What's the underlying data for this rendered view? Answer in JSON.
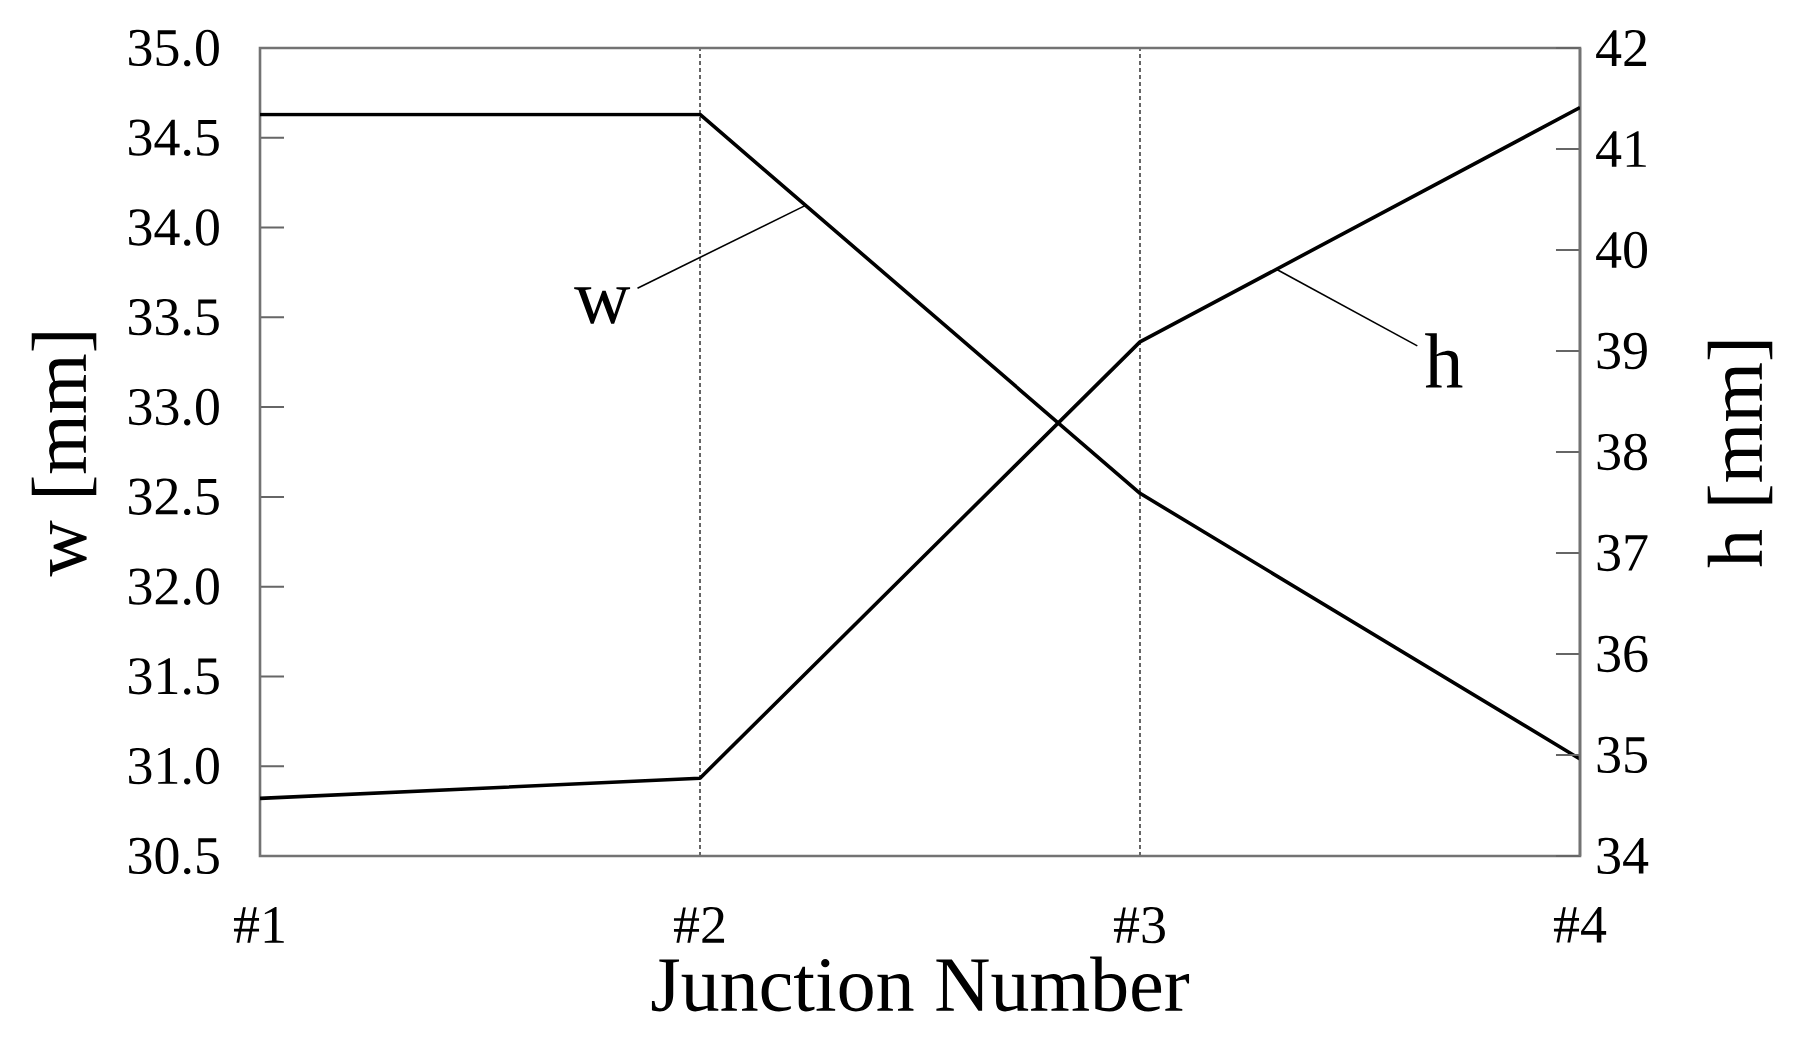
{
  "chart_data": {
    "type": "line",
    "xlabel": "Junction Number",
    "ylabel": "w [mm]",
    "y2label": "h [mm]",
    "categories": [
      "#1",
      "#2",
      "#3",
      "#4"
    ],
    "series": [
      {
        "name": "w",
        "color": "#000000",
        "values": [
          34.63,
          34.63,
          32.52,
          31.04
        ]
      },
      {
        "name": "h",
        "color": "#000000",
        "axis": "y2",
        "values": [
          34.57,
          34.77,
          39.09,
          41.41
        ]
      }
    ],
    "ylim": [
      30.5,
      35.0
    ],
    "yticks": [
      30.5,
      {
        "value": 31,
        "label": "31.0"
      },
      31.5,
      {
        "value": 32,
        "label": "32.0"
      },
      32.5,
      {
        "value": 33,
        "label": "33.0"
      },
      33.5,
      {
        "value": 34,
        "label": "34.0"
      },
      34.5,
      {
        "value": 35,
        "label": "35.0"
      }
    ],
    "y2lim": [
      34,
      42
    ],
    "y2ticks": [
      34,
      35,
      36,
      37,
      38,
      39,
      40,
      41,
      42
    ],
    "grid": "x",
    "marker": "none"
  }
}
